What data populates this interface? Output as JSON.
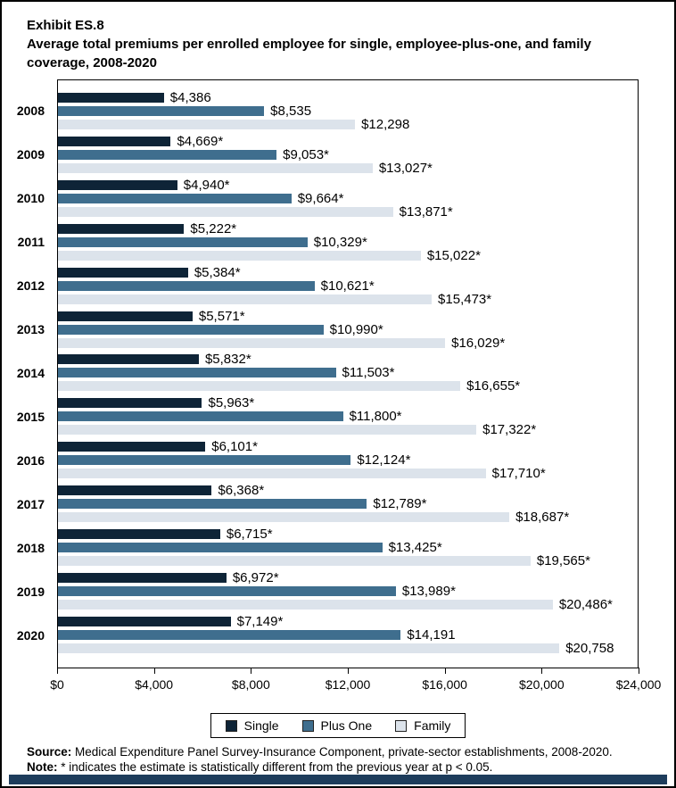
{
  "page": {
    "exhibit_label": "Exhibit ES.8",
    "title": "Average total premiums per enrolled employee for single, employee-plus-one, and family coverage, 2008-2020",
    "source_label": "Source:",
    "source_text": " Medical Expenditure Panel Survey-Insurance Component, private-sector establishments, 2008-2020.",
    "note_label": "Note:",
    "note_text": " * indicates the estimate is statistically different from the previous year at p < 0.05."
  },
  "colors": {
    "single": "#0e2437",
    "plus_one": "#3f6e8e",
    "family": "#dce3eb",
    "footer_bar": "#1e3d5c"
  },
  "chart_data": {
    "type": "bar",
    "orientation": "horizontal",
    "title": "Average total premiums per enrolled employee for single, employee-plus-one, and family coverage, 2008-2020",
    "categories": [
      "2008",
      "2009",
      "2010",
      "2011",
      "2012",
      "2013",
      "2014",
      "2015",
      "2016",
      "2017",
      "2018",
      "2019",
      "2020"
    ],
    "series": [
      {
        "name": "Single",
        "color_key": "single",
        "values": [
          4386,
          4669,
          4940,
          5222,
          5384,
          5571,
          5832,
          5963,
          6101,
          6368,
          6715,
          6972,
          7149
        ],
        "labels": [
          "$4,386",
          "$4,669*",
          "$4,940*",
          "$5,222*",
          "$5,384*",
          "$5,571*",
          "$5,832*",
          "$5,963*",
          "$6,101*",
          "$6,368*",
          "$6,715*",
          "$6,972*",
          "$7,149*"
        ]
      },
      {
        "name": "Plus One",
        "color_key": "plus_one",
        "values": [
          8535,
          9053,
          9664,
          10329,
          10621,
          10990,
          11503,
          11800,
          12124,
          12789,
          13425,
          13989,
          14191
        ],
        "labels": [
          "$8,535",
          "$9,053*",
          "$9,664*",
          "$10,329*",
          "$10,621*",
          "$10,990*",
          "$11,503*",
          "$11,800*",
          "$12,124*",
          "$12,789*",
          "$13,425*",
          "$13,989*",
          "$14,191"
        ]
      },
      {
        "name": "Family",
        "color_key": "family",
        "values": [
          12298,
          13027,
          13871,
          15022,
          15473,
          16029,
          16655,
          17322,
          17710,
          18687,
          19565,
          20486,
          20758
        ],
        "labels": [
          "$12,298",
          "$13,027*",
          "$13,871*",
          "$15,022*",
          "$15,473*",
          "$16,029*",
          "$16,655*",
          "$17,322*",
          "$17,710*",
          "$18,687*",
          "$19,565*",
          "$20,486*",
          "$20,758"
        ]
      }
    ],
    "xlim": [
      0,
      24000
    ],
    "x_ticks": [
      "$0",
      "$4,000",
      "$8,000",
      "$12,000",
      "$16,000",
      "$20,000",
      "$24,000"
    ],
    "legend": {
      "position": "bottom-center",
      "entries": [
        "Single",
        "Plus One",
        "Family"
      ]
    },
    "grid": false
  }
}
